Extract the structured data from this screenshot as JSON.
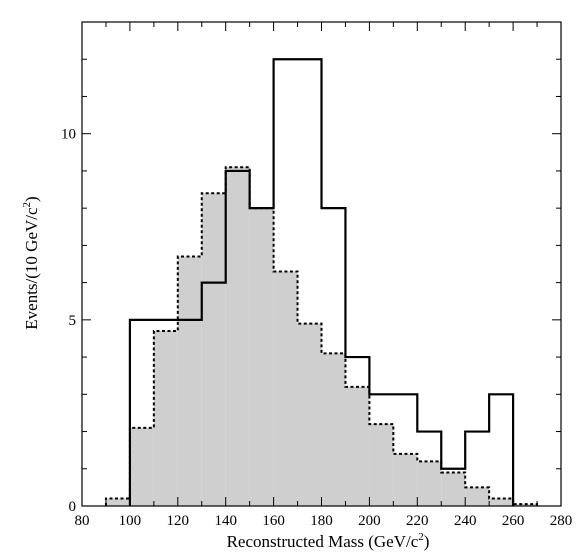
{
  "chart_data": {
    "type": "bar",
    "xlabel": "Reconstructed Mass (GeV/c",
    "xlabel_sup": "2",
    "xlabel_end": ")",
    "ylabel": "Events/(10 GeV/c",
    "ylabel_sup": "2",
    "ylabel_end": ")",
    "xlim": [
      80,
      280
    ],
    "ylim": [
      0,
      13
    ],
    "x_ticks": [
      80,
      100,
      120,
      140,
      160,
      180,
      200,
      220,
      240,
      260,
      280
    ],
    "y_ticks": [
      0,
      5,
      10
    ],
    "bin_width": 10,
    "series": [
      {
        "style": "shaded-dashed",
        "bins": [
          90,
          100,
          110,
          120,
          130,
          140,
          150,
          160,
          170,
          180,
          190,
          200,
          210,
          220,
          230,
          240,
          250,
          260
        ],
        "values": [
          0.2,
          2.1,
          4.7,
          6.7,
          8.4,
          9.1,
          8.0,
          6.3,
          4.9,
          4.1,
          3.2,
          2.2,
          1.4,
          1.2,
          0.9,
          0.5,
          0.2,
          0.05
        ]
      },
      {
        "style": "solid",
        "bins": [
          100,
          110,
          120,
          130,
          140,
          150,
          160,
          170,
          180,
          190,
          200,
          210,
          220,
          230,
          240,
          250
        ],
        "values": [
          5,
          5,
          5,
          6,
          9,
          8,
          12,
          12,
          8,
          4,
          3,
          3,
          2,
          1,
          2,
          3
        ]
      }
    ]
  }
}
